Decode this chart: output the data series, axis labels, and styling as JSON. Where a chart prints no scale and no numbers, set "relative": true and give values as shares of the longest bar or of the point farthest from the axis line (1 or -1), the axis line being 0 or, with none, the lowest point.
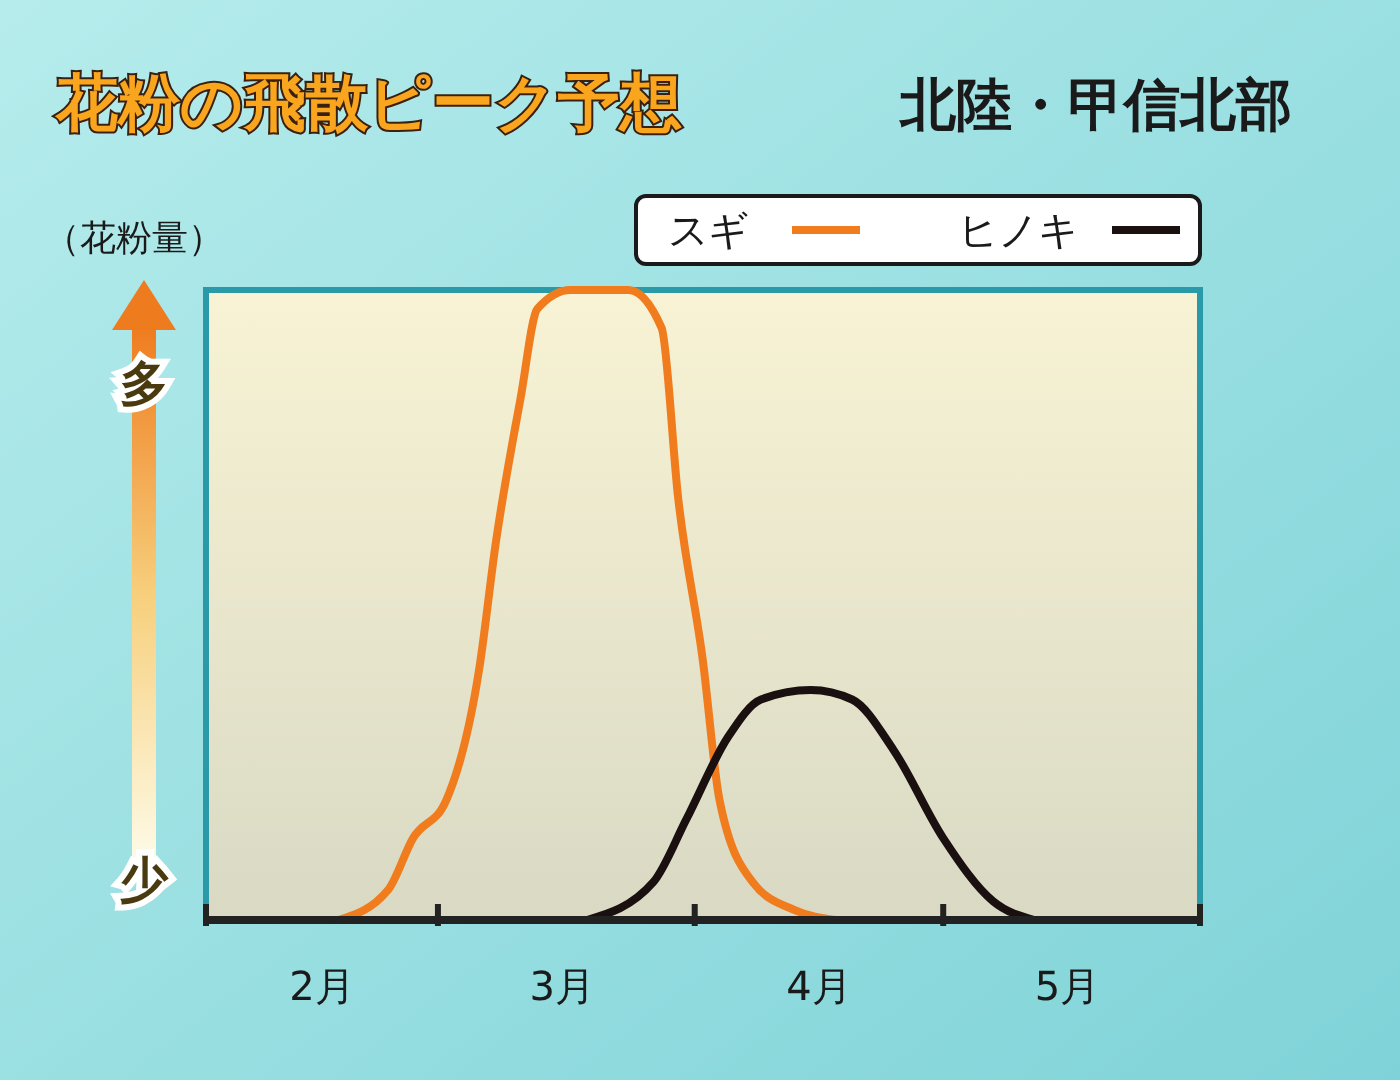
{
  "chart_data": {
    "type": "line",
    "title": "花粉の飛散ピーク予想",
    "subtitle": "北陸・甲信北部",
    "ylabel": "（花粉量）",
    "annotations": [
      "多",
      "少"
    ],
    "relative": true,
    "legend": "top right",
    "xlim": [
      "--02-01",
      "--06-01"
    ],
    "xticks": [
      {
        "value": "--02-01",
        "label": null
      },
      {
        "value": "--02-15",
        "label": "2月"
      },
      {
        "value": "--03-01",
        "label": null
      },
      {
        "value": "--03-16",
        "label": "3月"
      },
      {
        "value": "--04-01",
        "label": null
      },
      {
        "value": "--04-16",
        "label": "4月"
      },
      {
        "value": "--05-01",
        "label": null
      },
      {
        "value": "--05-16",
        "label": "5月"
      },
      {
        "value": "--06-01",
        "label": null
      }
    ],
    "series": [
      {
        "name": "スギ",
        "color": "#f07c1e",
        "x": [
          "--02-17",
          "--02-23",
          "--02-26",
          "--03-02",
          "--03-06",
          "--03-08",
          "--03-11",
          "--03-13",
          "--03-17",
          "--03-24",
          "--03-28",
          "--03-30",
          "--04-02",
          "--04-04",
          "--04-08",
          "--04-13",
          "--04-18"
        ],
        "values": [
          0,
          0.048,
          0.13,
          0.19,
          0.4,
          0.6,
          0.83,
          0.97,
          1,
          1,
          0.94,
          0.67,
          0.41,
          0.19,
          0.06,
          0.016,
          0
        ]
      },
      {
        "name": "ヒノキ",
        "color": "#1a1010",
        "x": [
          "--03-19",
          "--03-27",
          "--03-31",
          "--04-05",
          "--04-09",
          "--04-15",
          "--04-20",
          "--04-25",
          "--05-01",
          "--05-07",
          "--05-12"
        ],
        "values": [
          0,
          0.06,
          0.16,
          0.29,
          0.35,
          0.365,
          0.35,
          0.27,
          0.13,
          0.03,
          0
        ]
      }
    ]
  }
}
